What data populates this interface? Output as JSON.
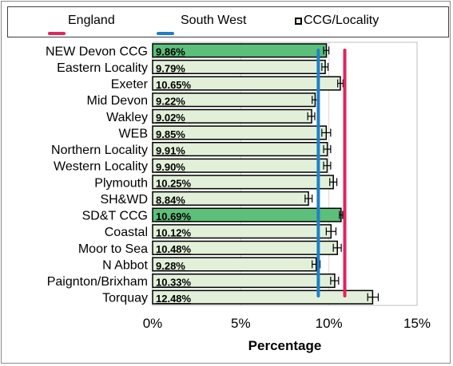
{
  "legend": {
    "england": "England",
    "south_west": "South West",
    "ccg": "CCG/Locality"
  },
  "colors": {
    "england": "#e0245e",
    "south_west": "#1f7fc8",
    "bar_fill": "#e2f0d9",
    "bar_highlight": "#5cbf7a",
    "bar_border": "#000000"
  },
  "chart_data": {
    "type": "bar",
    "orientation": "horizontal",
    "categories": [
      "NEW Devon CCG",
      "Eastern Locality",
      "Exeter",
      "Mid Devon",
      "Wakley",
      "WEB",
      "Northern Locality",
      "Western Locality",
      "Plymouth",
      "SH&WD",
      "SD&T CCG",
      "Coastal",
      "Moor to Sea",
      "N Abbot",
      "Paignton/Brixham",
      "Torquay"
    ],
    "values": [
      9.86,
      9.79,
      10.65,
      9.22,
      9.02,
      9.85,
      9.91,
      9.9,
      10.25,
      8.84,
      10.69,
      10.12,
      10.48,
      9.28,
      10.33,
      12.48
    ],
    "value_labels": [
      "9.86%",
      "9.79%",
      "10.65%",
      "9.22%",
      "9.02%",
      "9.85%",
      "9.91%",
      "9.90%",
      "10.25%",
      "8.84%",
      "10.69%",
      "10.12%",
      "10.48%",
      "9.28%",
      "10.33%",
      "12.48%"
    ],
    "highlighted": [
      "NEW Devon CCG",
      "SD&T CCG"
    ],
    "error_bars": [
      [
        9.7,
        10.0
      ],
      [
        9.6,
        9.95
      ],
      [
        10.5,
        10.8
      ],
      [
        9.05,
        9.4
      ],
      [
        8.8,
        9.2
      ],
      [
        9.6,
        10.1
      ],
      [
        9.7,
        10.1
      ],
      [
        9.7,
        10.1
      ],
      [
        10.05,
        10.45
      ],
      [
        8.65,
        9.05
      ],
      [
        10.6,
        10.78
      ],
      [
        9.85,
        10.4
      ],
      [
        10.25,
        10.7
      ],
      [
        9.05,
        9.5
      ],
      [
        10.1,
        10.55
      ],
      [
        12.2,
        12.8
      ]
    ],
    "reference_lines": [
      {
        "name": "England",
        "value": 10.9
      },
      {
        "name": "South West",
        "value": 9.4
      }
    ],
    "xlabel": "Percentage",
    "xlim": [
      0,
      15
    ],
    "xticks": [
      "0%",
      "5%",
      "10%",
      "15%"
    ],
    "xtick_values": [
      0,
      5,
      10,
      15
    ],
    "grid": true
  }
}
